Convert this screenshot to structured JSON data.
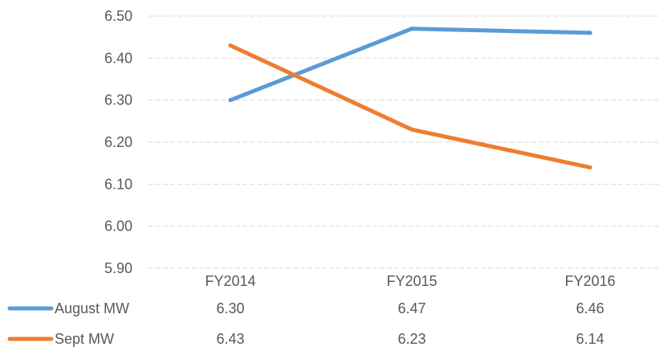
{
  "chart_data": {
    "type": "line",
    "categories": [
      "FY2014",
      "FY2015",
      "FY2016"
    ],
    "series": [
      {
        "name": "August MW",
        "values": [
          6.3,
          6.47,
          6.46
        ],
        "color": "#5b9bd5"
      },
      {
        "name": "Sept MW",
        "values": [
          6.43,
          6.23,
          6.14
        ],
        "color": "#ed7d31"
      }
    ],
    "ylim": [
      5.9,
      6.5
    ],
    "yticks": [
      "6.50",
      "6.40",
      "6.30",
      "6.20",
      "6.10",
      "6.00",
      "5.90"
    ],
    "title": "",
    "xlabel": "",
    "ylabel": "",
    "grid": true,
    "legend": "data-table-below",
    "data_table": {
      "rows": [
        {
          "label": "August MW",
          "cells": [
            "6.30",
            "6.47",
            "6.46"
          ]
        },
        {
          "label": "Sept MW",
          "cells": [
            "6.43",
            "6.23",
            "6.14"
          ]
        }
      ]
    }
  }
}
